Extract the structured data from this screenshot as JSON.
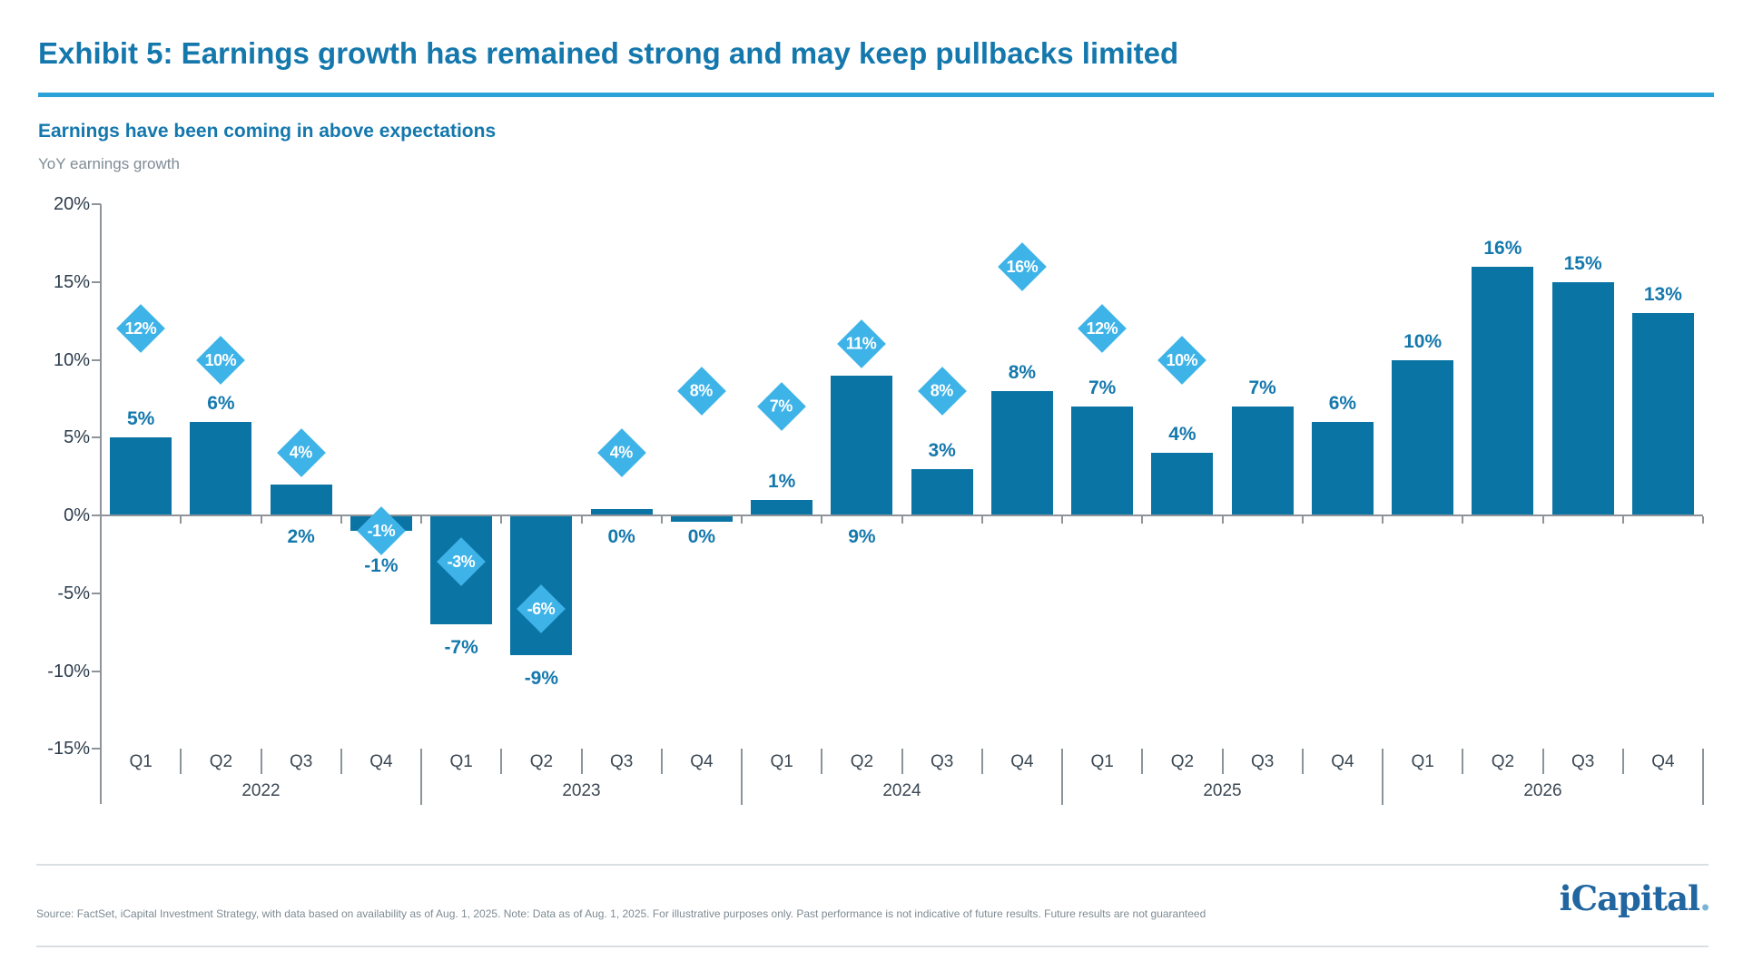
{
  "header": {
    "title": "Exhibit 5: Earnings growth has remained strong and may keep pullbacks limited",
    "subtitle": "Earnings have been coming in above expectations",
    "axis_caption": "YoY earnings growth"
  },
  "footer": {
    "source_note": "Source: FactSet, iCapital Investment Strategy, with data based on availability as of Aug. 1, 2025. Note: Data as of Aug. 1, 2025.  For illustrative purposes only. Past performance is not indicative of future results. Future results are not guaranteed",
    "logo_text": "iCapital",
    "logo_period": "."
  },
  "colors": {
    "title_blue": "#1478ad",
    "title_rule_blue": "#2ba3d6",
    "subtitle_blue": "#1478ad",
    "caption_gray": "#7e8c95",
    "bar_teal": "#0a74a4",
    "diamond_blue": "#3eb3e8",
    "bar_label_blue": "#1478ad",
    "ytick_text": "#2d3c4c",
    "xtick_text": "#3b4854",
    "axis_gray": "#8e9499",
    "separator_gray": "#8a949b",
    "footer_gray": "#7e8b93",
    "divider_gray": "#dadfe2",
    "logo_blue": "#2166a0",
    "logo_period_blue": "#79b4d6"
  },
  "chart_data": {
    "type": "bar",
    "title": "Earnings have been coming in above expectations",
    "ylabel": "YoY earnings growth",
    "ylim": [
      -15,
      20
    ],
    "yticks": [
      20,
      15,
      10,
      5,
      0,
      -5,
      -10,
      -15
    ],
    "ytick_labels": [
      "20%",
      "15%",
      "10%",
      "5%",
      "0%",
      "-5%",
      "-10%",
      "-15%"
    ],
    "grid": false,
    "legend": "none",
    "bar_style_solid_meaning": "reported",
    "bar_style_dotted_meaning": "estimated",
    "years": [
      "2022",
      "2023",
      "2024",
      "2025",
      "2026"
    ],
    "categories": [
      "Q1",
      "Q2",
      "Q3",
      "Q4",
      "Q1",
      "Q2",
      "Q3",
      "Q4",
      "Q1",
      "Q2",
      "Q3",
      "Q4",
      "Q1",
      "Q2",
      "Q3",
      "Q4",
      "Q1",
      "Q2",
      "Q3",
      "Q4"
    ],
    "series": [
      {
        "name": "bars_yoy_earnings_growth",
        "values": [
          5,
          6,
          2,
          -1,
          -7,
          -9,
          0,
          0,
          1,
          9,
          3,
          8,
          7,
          4,
          7,
          6,
          10,
          16,
          15,
          13
        ]
      },
      {
        "name": "diamonds_expected_growth",
        "values": [
          12,
          10,
          4,
          -1,
          -3,
          -6,
          4,
          8,
          7,
          11,
          8,
          16,
          12,
          10,
          null,
          null,
          null,
          null,
          null,
          null
        ]
      }
    ],
    "points": [
      {
        "year": "2022",
        "quarter": "Q1",
        "value": 5,
        "draw": 5,
        "label": "5%",
        "placement": "above",
        "style": "solid",
        "diamond": 12,
        "diamond_label": "12%"
      },
      {
        "year": "2022",
        "quarter": "Q2",
        "value": 6,
        "draw": 6,
        "label": "6%",
        "placement": "above",
        "style": "solid",
        "diamond": 10,
        "diamond_label": "10%"
      },
      {
        "year": "2022",
        "quarter": "Q3",
        "value": 2,
        "draw": 2,
        "label": "2%",
        "placement": "below_axis",
        "style": "solid",
        "diamond": 4,
        "diamond_label": "4%"
      },
      {
        "year": "2022",
        "quarter": "Q4",
        "value": -1,
        "draw": -1,
        "label": "-1%",
        "placement": "below_diamond",
        "style": "solid",
        "diamond": -1,
        "diamond_label": "-1%"
      },
      {
        "year": "2023",
        "quarter": "Q1",
        "value": -7,
        "draw": -7,
        "label": "-7%",
        "placement": "below_bar",
        "style": "solid",
        "diamond": -3,
        "diamond_label": "-3%"
      },
      {
        "year": "2023",
        "quarter": "Q2",
        "value": -9,
        "draw": -9,
        "label": "-9%",
        "placement": "below_bar",
        "style": "solid",
        "diamond": -6,
        "diamond_label": "-6%"
      },
      {
        "year": "2023",
        "quarter": "Q3",
        "value": 0,
        "draw": 0.4,
        "label": "0%",
        "placement": "below_axis",
        "style": "solid",
        "diamond": 4,
        "diamond_label": "4%"
      },
      {
        "year": "2023",
        "quarter": "Q4",
        "value": 0,
        "draw": -0.4,
        "label": "0%",
        "placement": "below_axis",
        "style": "solid",
        "diamond": 8,
        "diamond_label": "8%"
      },
      {
        "year": "2024",
        "quarter": "Q1",
        "value": 1,
        "draw": 1,
        "label": "1%",
        "placement": "above",
        "style": "solid",
        "diamond": 7,
        "diamond_label": "7%"
      },
      {
        "year": "2024",
        "quarter": "Q2",
        "value": 9,
        "draw": 9,
        "label": "9%",
        "placement": "below_axis",
        "style": "solid",
        "diamond": 11,
        "diamond_label": "11%"
      },
      {
        "year": "2024",
        "quarter": "Q3",
        "value": 3,
        "draw": 3,
        "label": "3%",
        "placement": "above",
        "style": "solid",
        "diamond": 8,
        "diamond_label": "8%"
      },
      {
        "year": "2024",
        "quarter": "Q4",
        "value": 8,
        "draw": 8,
        "label": "8%",
        "placement": "above",
        "style": "solid",
        "diamond": 16,
        "diamond_label": "16%"
      },
      {
        "year": "2025",
        "quarter": "Q1",
        "value": 7,
        "draw": 7,
        "label": "7%",
        "placement": "above",
        "style": "solid",
        "diamond": 12,
        "diamond_label": "12%"
      },
      {
        "year": "2025",
        "quarter": "Q2",
        "value": 4,
        "draw": 4,
        "label": "4%",
        "placement": "above",
        "style": "solid",
        "diamond": 10,
        "diamond_label": "10%"
      },
      {
        "year": "2025",
        "quarter": "Q3",
        "value": 7,
        "draw": 7,
        "label": "7%",
        "placement": "above",
        "style": "dotted",
        "diamond": null,
        "diamond_label": null
      },
      {
        "year": "2025",
        "quarter": "Q4",
        "value": 6,
        "draw": 6,
        "label": "6%",
        "placement": "above",
        "style": "dotted",
        "diamond": null,
        "diamond_label": null
      },
      {
        "year": "2026",
        "quarter": "Q1",
        "value": 10,
        "draw": 10,
        "label": "10%",
        "placement": "above",
        "style": "dotted",
        "diamond": null,
        "diamond_label": null
      },
      {
        "year": "2026",
        "quarter": "Q2",
        "value": 16,
        "draw": 16,
        "label": "16%",
        "placement": "above",
        "style": "dotted",
        "diamond": null,
        "diamond_label": null
      },
      {
        "year": "2026",
        "quarter": "Q3",
        "value": 15,
        "draw": 15,
        "label": "15%",
        "placement": "above",
        "style": "dotted",
        "diamond": null,
        "diamond_label": null
      },
      {
        "year": "2026",
        "quarter": "Q4",
        "value": 13,
        "draw": 13,
        "label": "13%",
        "placement": "above",
        "style": "dotted",
        "diamond": null,
        "diamond_label": null
      }
    ]
  }
}
